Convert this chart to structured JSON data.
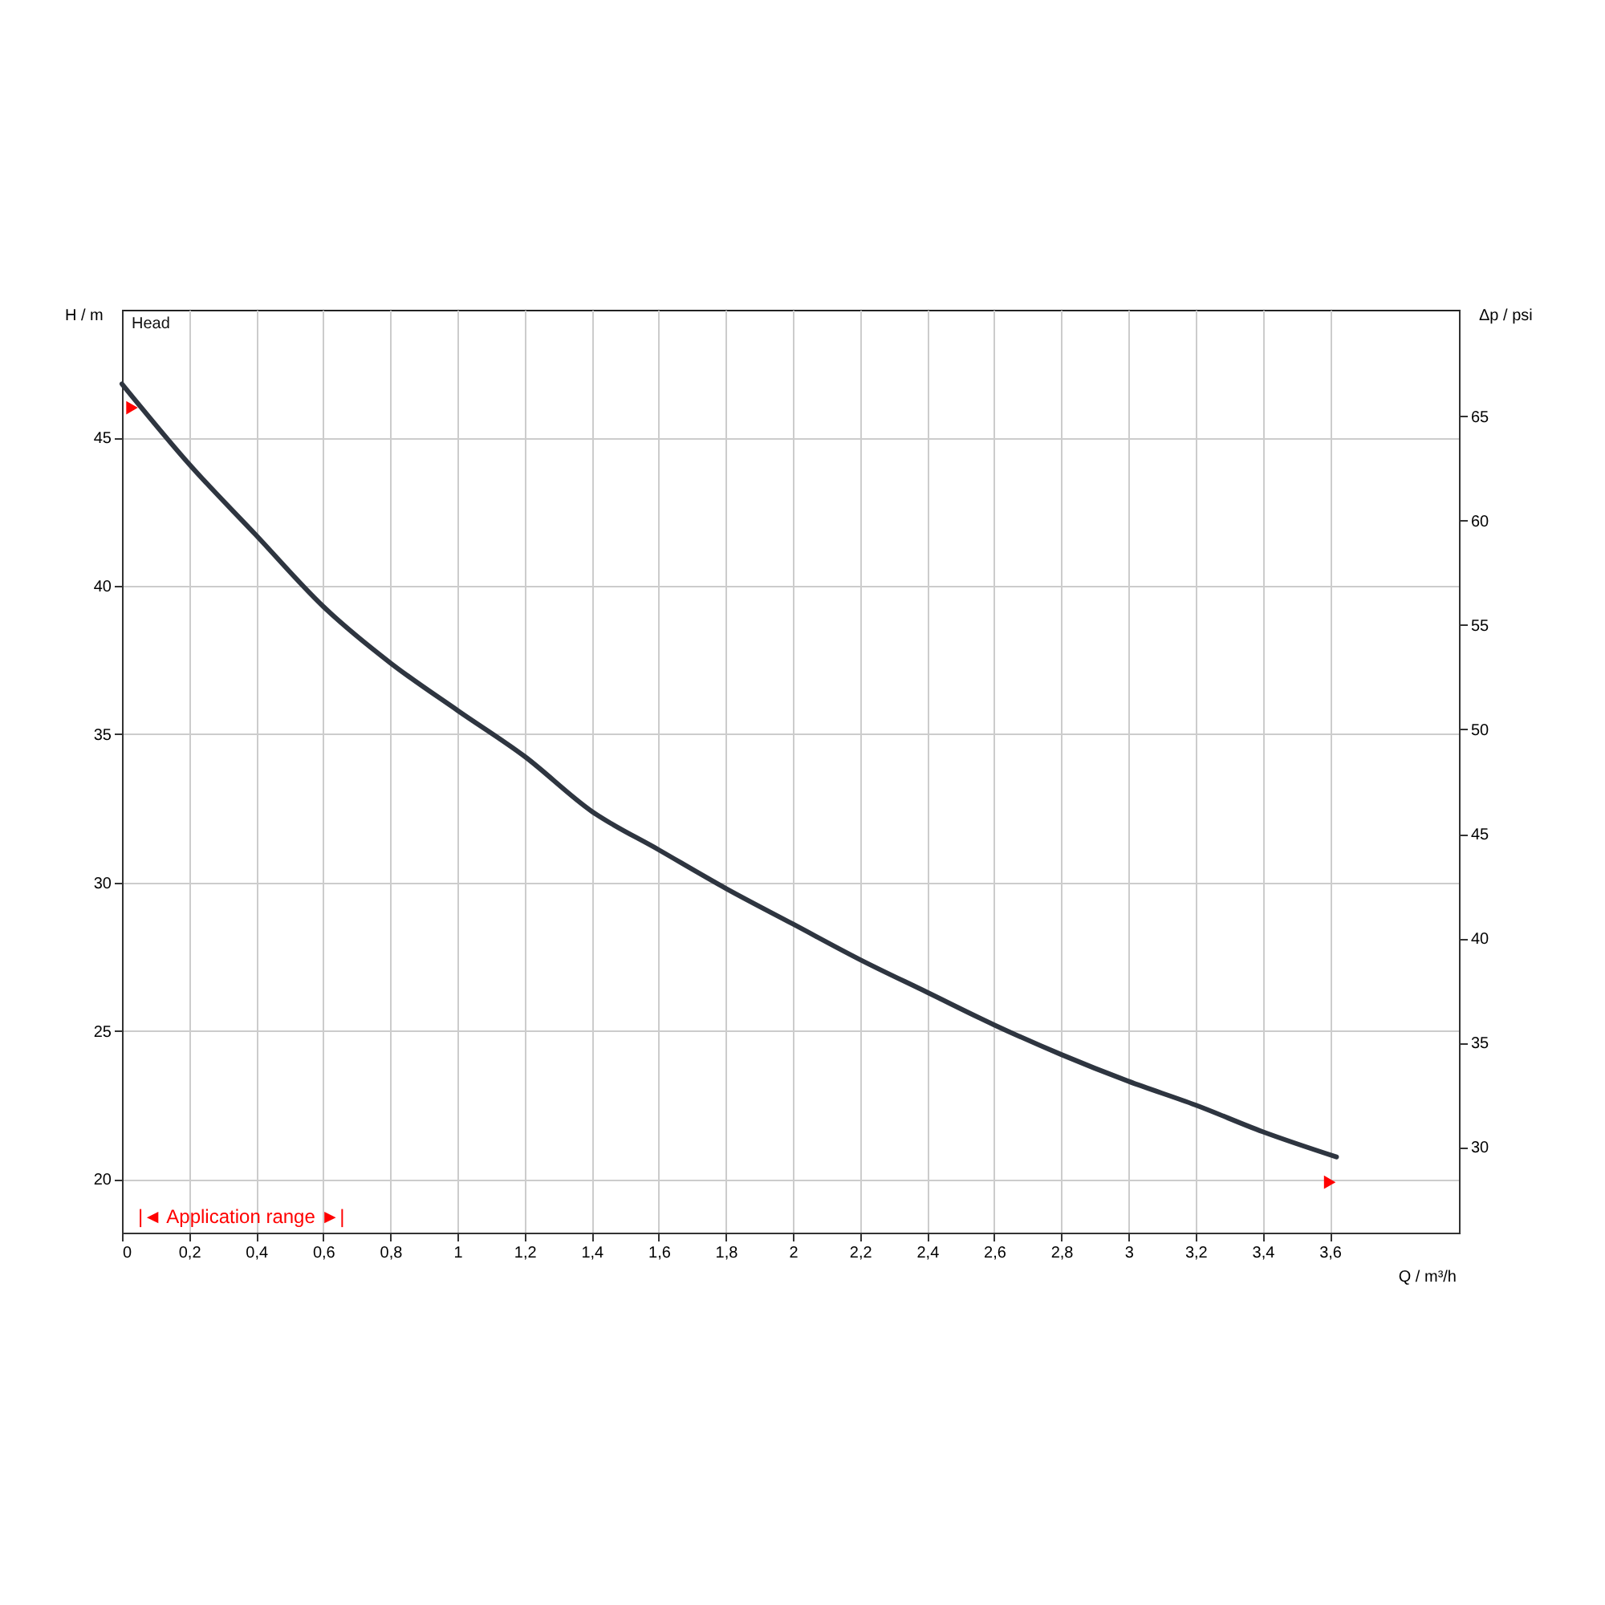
{
  "chart_data": {
    "type": "line",
    "title": "Head",
    "xlabel": "Q / m³/h",
    "ylabel": "H / m",
    "y2label": "Δp / psi",
    "xlim": [
      0,
      3.985
    ],
    "ylim": [
      18.2,
      49.3
    ],
    "y2lim": [
      25.9,
      70.1
    ],
    "xticks": [
      0,
      {
        "value": 0.2,
        "label": "0,2"
      },
      {
        "value": 0.4,
        "label": "0,4"
      },
      {
        "value": 0.6,
        "label": "0,6"
      },
      {
        "value": 0.8,
        "label": "0,8"
      },
      1,
      {
        "value": 1.2,
        "label": "1,2"
      },
      {
        "value": 1.4,
        "label": "1,4"
      },
      {
        "value": 1.6,
        "label": "1,6"
      },
      {
        "value": 1.8,
        "label": "1,8"
      },
      2,
      {
        "value": 2.2,
        "label": "2,2"
      },
      {
        "value": 2.4,
        "label": "2,4"
      },
      {
        "value": 2.6,
        "label": "2,6"
      },
      {
        "value": 2.8,
        "label": "2,8"
      },
      3,
      {
        "value": 3.2,
        "label": "3,2"
      },
      {
        "value": 3.4,
        "label": "3,4"
      },
      {
        "value": 3.6,
        "label": "3,6"
      }
    ],
    "yticks": [
      20,
      25,
      30,
      35,
      40,
      45
    ],
    "y2ticks": [
      30,
      35,
      40,
      45,
      50,
      55,
      60,
      65
    ],
    "grid": true,
    "legend": false,
    "annotations": [
      "|◄ Application range ►|"
    ],
    "series": [
      {
        "type": "line",
        "color": "#2e3540",
        "line_style": "solid",
        "x": [
          0,
          0.2,
          0.4,
          0.6,
          0.8,
          1.0,
          1.2,
          1.4,
          1.6,
          1.8,
          2.0,
          2.2,
          2.4,
          2.6,
          2.8,
          3.0,
          3.2,
          3.4,
          3.62
        ],
        "values": [
          46.8,
          44.1,
          41.7,
          39.3,
          37.4,
          35.8,
          34.25,
          32.4,
          31.1,
          29.8,
          28.6,
          27.4,
          26.3,
          25.2,
          24.2,
          23.3,
          22.5,
          21.6,
          20.75
        ]
      },
      {
        "type": "scatter",
        "color": "#ff0000",
        "marker": "triangle",
        "x": [
          0.03,
          3.6
        ],
        "values": [
          46,
          19.9
        ]
      }
    ]
  }
}
